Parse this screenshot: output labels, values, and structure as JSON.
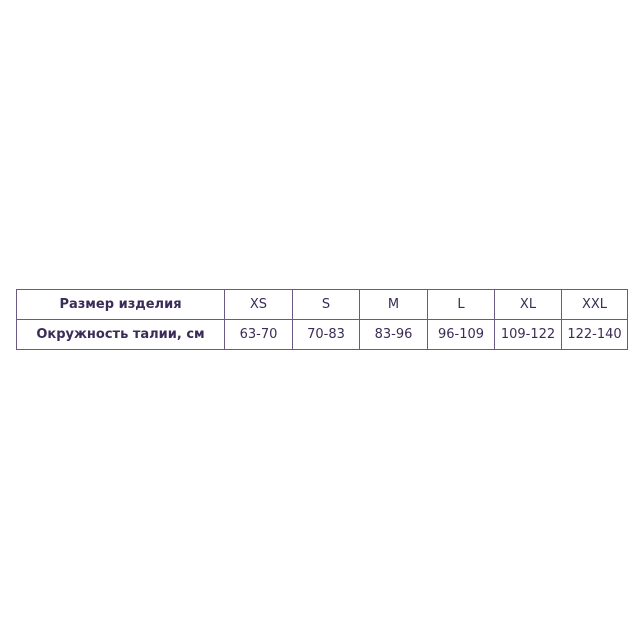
{
  "table": {
    "rows": [
      {
        "label": "Размер изделия",
        "values": [
          "XS",
          "S",
          "M",
          "L",
          "XL",
          "XXL"
        ]
      },
      {
        "label": "Окружность талии, см",
        "values": [
          "63-70",
          "70-83",
          "83-96",
          "96-109",
          "109-122",
          "122-140"
        ]
      }
    ]
  },
  "colors": {
    "border": "#6b5a86",
    "text": "#3b2b57"
  }
}
